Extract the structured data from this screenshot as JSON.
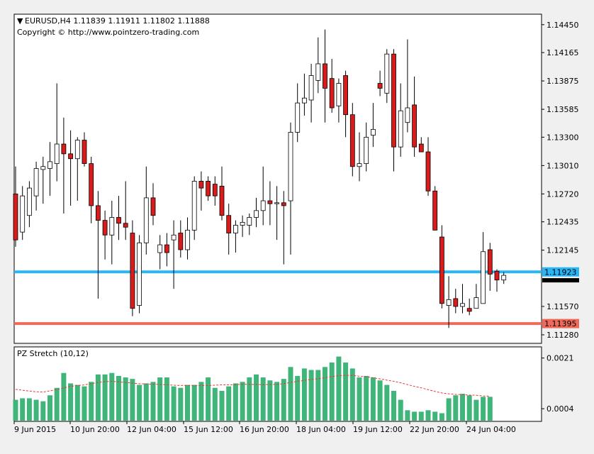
{
  "chart_header": {
    "dropdown_glyph": "▼",
    "symbol_line": "EURUSD,H4  1.11839 1.11911 1.11802 1.11888",
    "copyright": "Copyright © http://www.pointzero-trading.com"
  },
  "indicator": {
    "title": "PZ Stretch (10,12)"
  },
  "price_axis": {
    "ticks": [
      "1.14450",
      "1.14165",
      "1.13875",
      "1.13585",
      "1.13300",
      "1.13010",
      "1.12720",
      "1.12435",
      "1.12145",
      "1.11570",
      "1.11280"
    ]
  },
  "indicator_axis": {
    "ticks": [
      "0.0021",
      "0.0004"
    ]
  },
  "time_axis": {
    "ticks": [
      "9 Jun 2015",
      "10 Jun 20:00",
      "12 Jun 04:00",
      "15 Jun 12:00",
      "16 Jun 20:00",
      "18 Jun 04:00",
      "19 Jun 12:00",
      "22 Jun 20:00",
      "24 Jun 04:00"
    ]
  },
  "lines": {
    "blue": {
      "price": 1.11923,
      "label": "1.11923",
      "color": "#29b6f6"
    },
    "red": {
      "price": 1.11395,
      "label": "1.11395",
      "color": "#f06a5a"
    },
    "current_price": "1.11888"
  },
  "colors": {
    "bull": "#ffffff",
    "bear": "#d81b1b",
    "candle_outline": "#000000",
    "histogram": "#3fb57a",
    "signal": "#e53935"
  },
  "chart_data": {
    "type": "candlestick",
    "symbol": "EURUSD",
    "timeframe": "H4",
    "ylim": [
      1.112,
      1.1455
    ],
    "candles": [
      {
        "o": 1.1272,
        "h": 1.13,
        "l": 1.1218,
        "c": 1.1225
      },
      {
        "o": 1.1233,
        "h": 1.128,
        "l": 1.1225,
        "c": 1.127
      },
      {
        "o": 1.125,
        "h": 1.1285,
        "l": 1.1238,
        "c": 1.1278
      },
      {
        "o": 1.127,
        "h": 1.1305,
        "l": 1.1255,
        "c": 1.1298
      },
      {
        "o": 1.1297,
        "h": 1.131,
        "l": 1.1262,
        "c": 1.13
      },
      {
        "o": 1.1298,
        "h": 1.1325,
        "l": 1.127,
        "c": 1.1305
      },
      {
        "o": 1.1303,
        "h": 1.1385,
        "l": 1.1285,
        "c": 1.1323
      },
      {
        "o": 1.1323,
        "h": 1.135,
        "l": 1.1252,
        "c": 1.1313
      },
      {
        "o": 1.1313,
        "h": 1.1337,
        "l": 1.126,
        "c": 1.1308
      },
      {
        "o": 1.1308,
        "h": 1.133,
        "l": 1.1265,
        "c": 1.1327
      },
      {
        "o": 1.1327,
        "h": 1.1335,
        "l": 1.13,
        "c": 1.1303
      },
      {
        "o": 1.1303,
        "h": 1.131,
        "l": 1.1242,
        "c": 1.126
      },
      {
        "o": 1.126,
        "h": 1.1275,
        "l": 1.1165,
        "c": 1.1245
      },
      {
        "o": 1.1245,
        "h": 1.1255,
        "l": 1.1205,
        "c": 1.123
      },
      {
        "o": 1.123,
        "h": 1.1265,
        "l": 1.12,
        "c": 1.1248
      },
      {
        "o": 1.1248,
        "h": 1.127,
        "l": 1.1225,
        "c": 1.1242
      },
      {
        "o": 1.1242,
        "h": 1.1285,
        "l": 1.1225,
        "c": 1.1238
      },
      {
        "o": 1.1232,
        "h": 1.1245,
        "l": 1.1147,
        "c": 1.1155
      },
      {
        "o": 1.1158,
        "h": 1.123,
        "l": 1.115,
        "c": 1.1222
      },
      {
        "o": 1.1222,
        "h": 1.13,
        "l": 1.121,
        "c": 1.1268
      },
      {
        "o": 1.1268,
        "h": 1.1283,
        "l": 1.124,
        "c": 1.125
      },
      {
        "o": 1.1212,
        "h": 1.123,
        "l": 1.1195,
        "c": 1.122
      },
      {
        "o": 1.122,
        "h": 1.1232,
        "l": 1.1198,
        "c": 1.1212
      },
      {
        "o": 1.1225,
        "h": 1.1245,
        "l": 1.1175,
        "c": 1.123
      },
      {
        "o": 1.1232,
        "h": 1.1245,
        "l": 1.1207,
        "c": 1.1215
      },
      {
        "o": 1.1215,
        "h": 1.1248,
        "l": 1.1205,
        "c": 1.1235
      },
      {
        "o": 1.1235,
        "h": 1.129,
        "l": 1.1225,
        "c": 1.1285
      },
      {
        "o": 1.1285,
        "h": 1.1295,
        "l": 1.1255,
        "c": 1.1278
      },
      {
        "o": 1.1285,
        "h": 1.129,
        "l": 1.1265,
        "c": 1.127
      },
      {
        "o": 1.1282,
        "h": 1.129,
        "l": 1.126,
        "c": 1.127
      },
      {
        "o": 1.128,
        "h": 1.13,
        "l": 1.1245,
        "c": 1.125
      },
      {
        "o": 1.125,
        "h": 1.1262,
        "l": 1.121,
        "c": 1.1232
      },
      {
        "o": 1.1232,
        "h": 1.1245,
        "l": 1.1212,
        "c": 1.124
      },
      {
        "o": 1.124,
        "h": 1.125,
        "l": 1.1228,
        "c": 1.1243
      },
      {
        "o": 1.124,
        "h": 1.1252,
        "l": 1.123,
        "c": 1.1248
      },
      {
        "o": 1.1248,
        "h": 1.1268,
        "l": 1.1238,
        "c": 1.1255
      },
      {
        "o": 1.1255,
        "h": 1.13,
        "l": 1.124,
        "c": 1.1265
      },
      {
        "o": 1.1265,
        "h": 1.1285,
        "l": 1.124,
        "c": 1.1262
      },
      {
        "o": 1.1262,
        "h": 1.128,
        "l": 1.1225,
        "c": 1.1263
      },
      {
        "o": 1.1263,
        "h": 1.1275,
        "l": 1.12,
        "c": 1.126
      },
      {
        "o": 1.1265,
        "h": 1.1345,
        "l": 1.121,
        "c": 1.1335
      },
      {
        "o": 1.1335,
        "h": 1.1385,
        "l": 1.1325,
        "c": 1.1365
      },
      {
        "o": 1.1365,
        "h": 1.1395,
        "l": 1.1352,
        "c": 1.137
      },
      {
        "o": 1.1368,
        "h": 1.1405,
        "l": 1.1345,
        "c": 1.1393
      },
      {
        "o": 1.1388,
        "h": 1.1432,
        "l": 1.1375,
        "c": 1.1405
      },
      {
        "o": 1.1405,
        "h": 1.144,
        "l": 1.1345,
        "c": 1.138
      },
      {
        "o": 1.139,
        "h": 1.141,
        "l": 1.1355,
        "c": 1.136
      },
      {
        "o": 1.1362,
        "h": 1.139,
        "l": 1.1345,
        "c": 1.1385
      },
      {
        "o": 1.1393,
        "h": 1.1398,
        "l": 1.133,
        "c": 1.1353
      },
      {
        "o": 1.1353,
        "h": 1.1365,
        "l": 1.129,
        "c": 1.13
      },
      {
        "o": 1.13,
        "h": 1.1335,
        "l": 1.1285,
        "c": 1.1303
      },
      {
        "o": 1.1303,
        "h": 1.1345,
        "l": 1.1295,
        "c": 1.133
      },
      {
        "o": 1.1332,
        "h": 1.1365,
        "l": 1.132,
        "c": 1.1338
      },
      {
        "o": 1.1385,
        "h": 1.1398,
        "l": 1.1372,
        "c": 1.138
      },
      {
        "o": 1.1375,
        "h": 1.142,
        "l": 1.1365,
        "c": 1.1415
      },
      {
        "o": 1.1415,
        "h": 1.142,
        "l": 1.1295,
        "c": 1.132
      },
      {
        "o": 1.132,
        "h": 1.1385,
        "l": 1.131,
        "c": 1.1357
      },
      {
        "o": 1.1345,
        "h": 1.143,
        "l": 1.1335,
        "c": 1.136
      },
      {
        "o": 1.1363,
        "h": 1.1392,
        "l": 1.131,
        "c": 1.132
      },
      {
        "o": 1.1323,
        "h": 1.133,
        "l": 1.1318,
        "c": 1.1315
      },
      {
        "o": 1.1315,
        "h": 1.133,
        "l": 1.127,
        "c": 1.1275
      },
      {
        "o": 1.1275,
        "h": 1.128,
        "l": 1.1235,
        "c": 1.1235
      },
      {
        "o": 1.1228,
        "h": 1.124,
        "l": 1.1155,
        "c": 1.116
      },
      {
        "o": 1.1158,
        "h": 1.1188,
        "l": 1.1135,
        "c": 1.1164
      },
      {
        "o": 1.1165,
        "h": 1.1175,
        "l": 1.115,
        "c": 1.1157
      },
      {
        "o": 1.1157,
        "h": 1.118,
        "l": 1.115,
        "c": 1.116
      },
      {
        "o": 1.1155,
        "h": 1.1165,
        "l": 1.1148,
        "c": 1.1152
      },
      {
        "o": 1.1155,
        "h": 1.118,
        "l": 1.1155,
        "c": 1.1166
      },
      {
        "o": 1.116,
        "h": 1.1233,
        "l": 1.116,
        "c": 1.1213
      },
      {
        "o": 1.1215,
        "h": 1.1222,
        "l": 1.1173,
        "c": 1.119
      },
      {
        "o": 1.1193,
        "h": 1.1195,
        "l": 1.1172,
        "c": 1.1184
      },
      {
        "o": 1.1184,
        "h": 1.1192,
        "l": 1.118,
        "c": 1.11888
      }
    ],
    "indicator": {
      "name": "PZ Stretch (10,12)",
      "ylim": [
        0.0,
        0.00245
      ],
      "histogram": [
        0.0007,
        0.00075,
        0.00075,
        0.0007,
        0.00065,
        0.00085,
        0.0011,
        0.0016,
        0.00125,
        0.0012,
        0.00115,
        0.0013,
        0.00155,
        0.00155,
        0.0016,
        0.0015,
        0.00145,
        0.0014,
        0.0012,
        0.00125,
        0.0013,
        0.00145,
        0.00145,
        0.00115,
        0.0011,
        0.0012,
        0.0012,
        0.0013,
        0.00145,
        0.0011,
        0.001,
        0.00115,
        0.00125,
        0.0013,
        0.00145,
        0.00155,
        0.00145,
        0.00135,
        0.0013,
        0.0014,
        0.0018,
        0.0015,
        0.00175,
        0.0017,
        0.0017,
        0.0018,
        0.00195,
        0.00215,
        0.00195,
        0.00175,
        0.00145,
        0.0015,
        0.00145,
        0.00135,
        0.0012,
        0.001,
        0.0007,
        0.00035,
        0.0003,
        0.0003,
        0.00035,
        0.0003,
        0.00025,
        0.00075,
        0.00085,
        0.0009,
        0.00085,
        0.0007,
        0.0008,
        0.0008
      ],
      "signal": [
        0.00105,
        0.00102,
        0.00099,
        0.00097,
        0.00096,
        0.001,
        0.00104,
        0.0011,
        0.00115,
        0.00118,
        0.0012,
        0.00124,
        0.00128,
        0.00131,
        0.00132,
        0.0013,
        0.00128,
        0.00126,
        0.00124,
        0.00123,
        0.00122,
        0.00122,
        0.0012,
        0.00119,
        0.00118,
        0.00118,
        0.00117,
        0.00118,
        0.00118,
        0.00119,
        0.0012,
        0.0012,
        0.00121,
        0.00122,
        0.00122,
        0.00121,
        0.00121,
        0.00121,
        0.00122,
        0.00124,
        0.00128,
        0.00132,
        0.00135,
        0.00138,
        0.00141,
        0.00144,
        0.00148,
        0.00151,
        0.00152,
        0.00152,
        0.00149,
        0.00147,
        0.00144,
        0.0014,
        0.00136,
        0.00132,
        0.00127,
        0.00121,
        0.00115,
        0.0011,
        0.00104,
        0.00098,
        0.00093,
        0.0009,
        0.00088,
        0.00087,
        0.00086,
        0.00085,
        0.00083,
        0.00082
      ]
    }
  }
}
